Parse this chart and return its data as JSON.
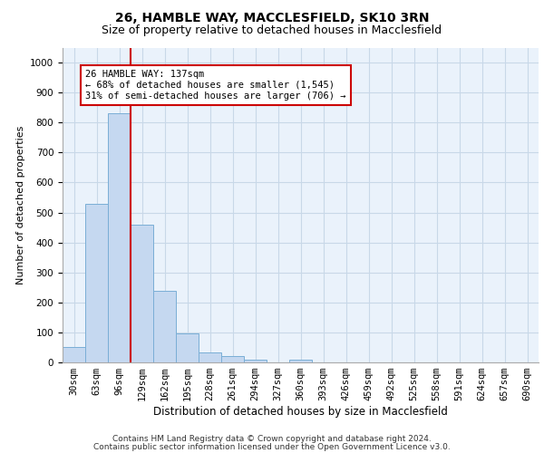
{
  "title1": "26, HAMBLE WAY, MACCLESFIELD, SK10 3RN",
  "title2": "Size of property relative to detached houses in Macclesfield",
  "xlabel": "Distribution of detached houses by size in Macclesfield",
  "ylabel": "Number of detached properties",
  "categories": [
    "30sqm",
    "63sqm",
    "96sqm",
    "129sqm",
    "162sqm",
    "195sqm",
    "228sqm",
    "261sqm",
    "294sqm",
    "327sqm",
    "360sqm",
    "393sqm",
    "426sqm",
    "459sqm",
    "492sqm",
    "525sqm",
    "558sqm",
    "591sqm",
    "624sqm",
    "657sqm",
    "690sqm"
  ],
  "values": [
    50,
    530,
    830,
    460,
    240,
    97,
    33,
    20,
    10,
    0,
    10,
    0,
    0,
    0,
    0,
    0,
    0,
    0,
    0,
    0,
    0
  ],
  "bar_color": "#c5d8f0",
  "bar_edge_color": "#7aaed6",
  "vline_color": "#cc0000",
  "vline_position": 2.5,
  "annotation_text": "26 HAMBLE WAY: 137sqm\n← 68% of detached houses are smaller (1,545)\n31% of semi-detached houses are larger (706) →",
  "annotation_box_color": "#ffffff",
  "annotation_box_edge_color": "#cc0000",
  "ylim": [
    0,
    1050
  ],
  "yticks": [
    0,
    100,
    200,
    300,
    400,
    500,
    600,
    700,
    800,
    900,
    1000
  ],
  "grid_color": "#c8d8e8",
  "bg_color": "#eaf2fb",
  "footer1": "Contains HM Land Registry data © Crown copyright and database right 2024.",
  "footer2": "Contains public sector information licensed under the Open Government Licence v3.0.",
  "title1_fontsize": 10,
  "title2_fontsize": 9,
  "xlabel_fontsize": 8.5,
  "ylabel_fontsize": 8,
  "tick_fontsize": 7.5,
  "annotation_fontsize": 7.5,
  "footer_fontsize": 6.5
}
